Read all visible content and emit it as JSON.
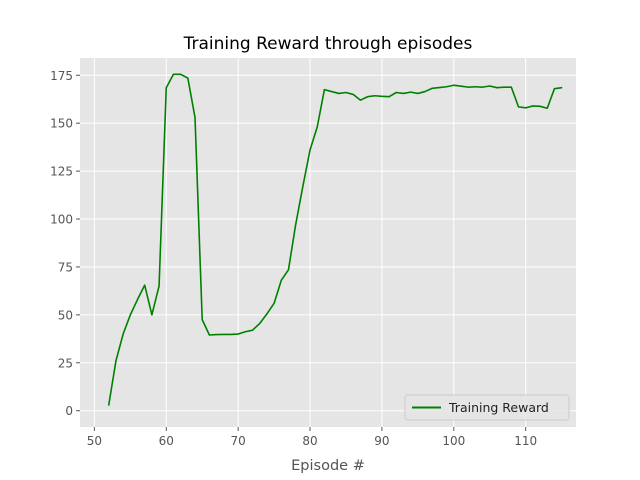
{
  "chart_data": {
    "type": "line",
    "title": "Training Reward through episodes",
    "xlabel": "Episode #",
    "ylabel": "",
    "xlim": [
      48,
      117
    ],
    "ylim": [
      -8.5,
      184
    ],
    "xticks": [
      50,
      60,
      70,
      80,
      90,
      100,
      110
    ],
    "yticks": [
      0,
      25,
      50,
      75,
      100,
      125,
      150,
      175
    ],
    "grid": true,
    "legend_position": "lower-right",
    "colors": {
      "plot_background": "#e5e5e5",
      "grid": "#ffffff",
      "line": "#008000"
    },
    "series": [
      {
        "name": "Training Reward",
        "x": [
          52,
          53,
          54,
          55,
          56,
          57,
          58,
          59,
          60,
          61,
          62,
          63,
          64,
          65,
          66,
          67,
          68,
          69,
          70,
          71,
          72,
          73,
          74,
          75,
          76,
          77,
          78,
          79,
          80,
          81,
          82,
          83,
          84,
          85,
          86,
          87,
          88,
          89,
          90,
          91,
          92,
          93,
          94,
          95,
          96,
          97,
          98,
          99,
          100,
          101,
          102,
          103,
          104,
          105,
          106,
          107,
          108,
          109,
          110,
          111,
          112,
          113,
          114,
          115
        ],
        "y": [
          3,
          26,
          40,
          50,
          58,
          65.5,
          50,
          65,
          168.5,
          175.5,
          175.5,
          173.5,
          153,
          47.5,
          39.5,
          39.7,
          39.8,
          39.8,
          40,
          41.2,
          42,
          45.5,
          50.5,
          56,
          68,
          73.5,
          97,
          117,
          136,
          148,
          167.5,
          166.5,
          165.5,
          166,
          165,
          162,
          163.8,
          164.3,
          164,
          163.8,
          166,
          165.5,
          166.2,
          165.5,
          166.5,
          168.2,
          168.6,
          169,
          169.8,
          169.3,
          168.8,
          169,
          168.8,
          169.4,
          168.5,
          168.8,
          168.8,
          158.5,
          158,
          159,
          158.8,
          157.8,
          168,
          168.5
        ]
      }
    ]
  }
}
